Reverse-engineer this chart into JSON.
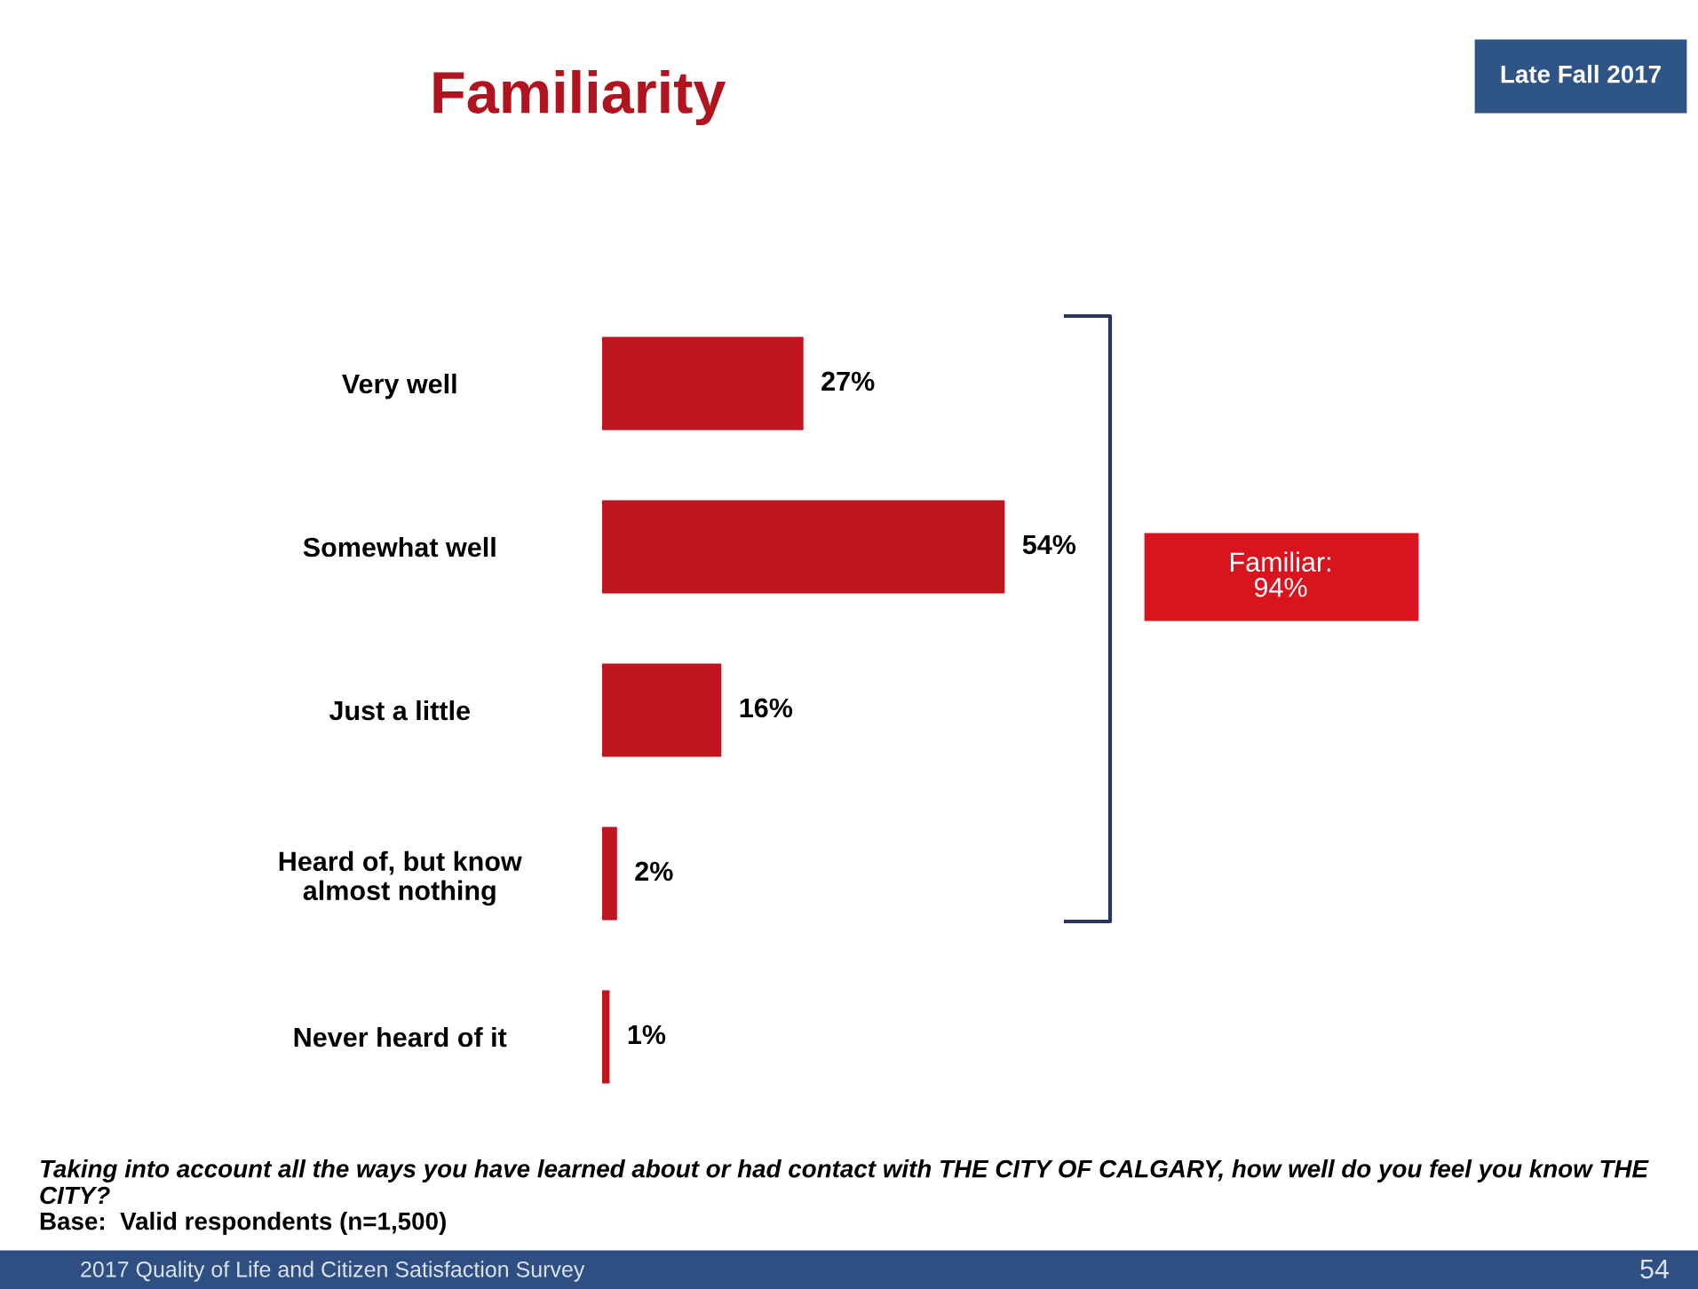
{
  "chart_data": {
    "type": "bar",
    "orientation": "horizontal",
    "title": "Familiarity",
    "categories": [
      "Very well",
      "Somewhat well",
      "Just a little",
      "Heard of, but know\nalmost nothing",
      "Never heard of it"
    ],
    "values": [
      27,
      54,
      16,
      2,
      1
    ],
    "value_labels": [
      "27%",
      "54%",
      "16%",
      "2%",
      "1%"
    ],
    "color": "#c0141e",
    "tick_labels": "y",
    "grid": false,
    "legend": false,
    "annotations": [
      "Late Fall 2017",
      "Familiar:\n94%",
      "Taking into account all the ways you have learned about or had contact with THE CITY OF CALGARY, how well do you feel you know THE CITY?",
      "Base:  Valid respondents (n=1,500)",
      "2017 Quality of Life and Citizen Satisfaction Survey",
      "54"
    ]
  }
}
